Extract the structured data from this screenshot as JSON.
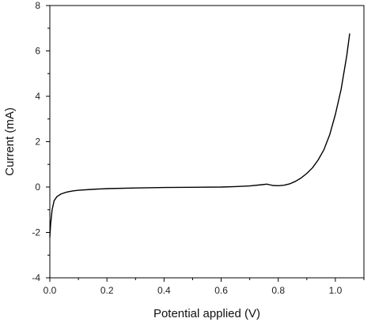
{
  "chart_data": {
    "type": "line",
    "title": "",
    "xlabel": "Potential applied (V)",
    "ylabel": "Current (mA)",
    "xlim": [
      0.0,
      1.1
    ],
    "ylim": [
      -4,
      8
    ],
    "x_ticks": [
      0.0,
      0.2,
      0.4,
      0.6,
      0.8,
      1.0
    ],
    "x_tick_labels": [
      "0.0",
      "0.2",
      "0.4",
      "0.6",
      "0.8",
      "1.0"
    ],
    "y_ticks": [
      -4,
      -2,
      0,
      2,
      4,
      6,
      8
    ],
    "y_tick_labels": [
      "-4",
      "-2",
      "0",
      "2",
      "4",
      "6",
      "8"
    ],
    "grid": false,
    "legend": "none",
    "series": [
      {
        "color": "#000000",
        "x": [
          0.0,
          0.003,
          0.008,
          0.015,
          0.025,
          0.04,
          0.06,
          0.08,
          0.1,
          0.15,
          0.2,
          0.3,
          0.4,
          0.5,
          0.6,
          0.65,
          0.7,
          0.74,
          0.76,
          0.77,
          0.78,
          0.8,
          0.82,
          0.84,
          0.86,
          0.88,
          0.9,
          0.92,
          0.94,
          0.96,
          0.98,
          1.0,
          1.02,
          1.04,
          1.05
        ],
        "y": [
          -2.2,
          -1.6,
          -1.0,
          -0.6,
          -0.42,
          -0.3,
          -0.22,
          -0.17,
          -0.14,
          -0.1,
          -0.07,
          -0.04,
          -0.02,
          -0.01,
          0.0,
          0.02,
          0.05,
          0.1,
          0.13,
          0.1,
          0.07,
          0.06,
          0.08,
          0.14,
          0.25,
          0.4,
          0.6,
          0.85,
          1.2,
          1.65,
          2.3,
          3.2,
          4.3,
          5.8,
          6.75
        ]
      }
    ]
  }
}
